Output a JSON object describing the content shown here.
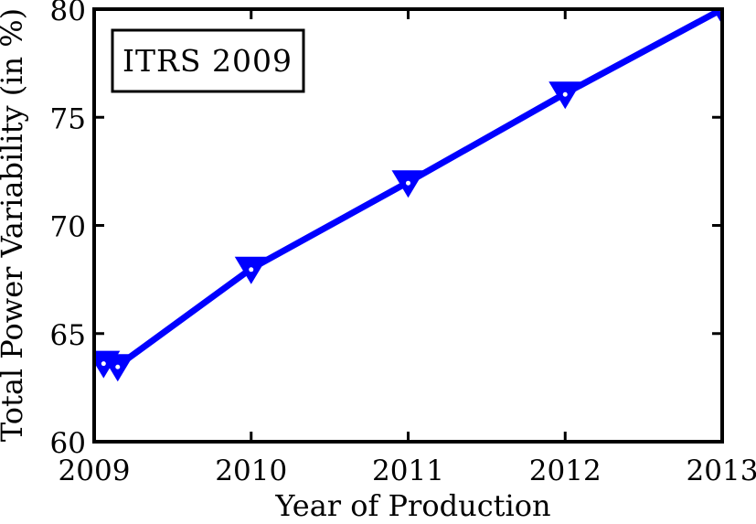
{
  "chart_data": {
    "type": "line",
    "title": "",
    "xlabel": "Year of Production",
    "ylabel": "Total Power Variability (in %)",
    "xlim": [
      2009,
      2013
    ],
    "ylim": [
      60,
      80
    ],
    "x_ticks": [
      2009,
      2010,
      2011,
      2012,
      2013
    ],
    "y_ticks": [
      60,
      65,
      70,
      75,
      80
    ],
    "grid": false,
    "background": "#FFFFFF",
    "axis_color": "#000000",
    "legend": {
      "position": "top-left",
      "border": true,
      "entries": [
        "ITRS 2009"
      ]
    },
    "series": [
      {
        "name": "ITRS 2009",
        "color": "#0000FF",
        "marker": "triangle-down",
        "marker_center_dot_color": "#FFFFFF",
        "x": [
          2009,
          2010,
          2011,
          2012,
          2013
        ],
        "y": [
          63.5,
          68,
          72,
          76.1,
          80
        ],
        "render_points": [
          [
            2009.06,
            63.65
          ],
          [
            2009.15,
            63.5
          ],
          [
            2010,
            68
          ],
          [
            2011,
            72
          ],
          [
            2012,
            76.1
          ],
          [
            2013,
            80
          ]
        ]
      }
    ]
  }
}
